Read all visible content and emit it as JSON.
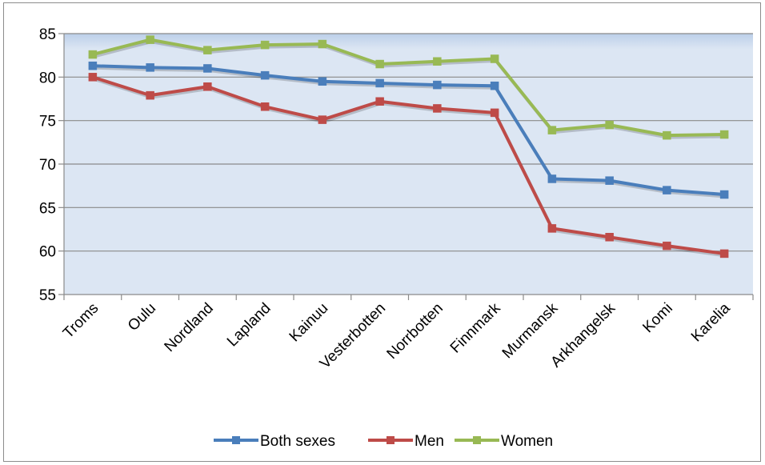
{
  "chart_data": {
    "type": "line",
    "title": "",
    "xlabel": "",
    "ylabel": "",
    "categories": [
      "Troms",
      "Oulu",
      "Nordland",
      "Lapland",
      "Kainuu",
      "Vesterbotten",
      "Norrbotten",
      "Finnmark",
      "Murmansk",
      "Arkhangelsk",
      "Komi",
      "Karelia"
    ],
    "ylim": [
      55,
      85
    ],
    "yticks": [
      55,
      60,
      65,
      70,
      75,
      80,
      85
    ],
    "grid": true,
    "legend_position": "bottom",
    "series": [
      {
        "name": "Both sexes",
        "color": "#4a7ebb",
        "values": [
          81.3,
          81.1,
          81.0,
          80.2,
          79.5,
          79.3,
          79.1,
          79.0,
          68.3,
          68.1,
          67.0,
          66.5
        ]
      },
      {
        "name": "Men",
        "color": "#be4b48",
        "values": [
          80.0,
          77.9,
          78.9,
          76.6,
          75.1,
          77.2,
          76.4,
          75.9,
          62.6,
          61.6,
          60.6,
          59.7
        ]
      },
      {
        "name": "Women",
        "color": "#98b954",
        "values": [
          82.6,
          84.3,
          83.1,
          83.7,
          83.8,
          81.5,
          81.8,
          82.1,
          73.9,
          74.5,
          73.3,
          73.4
        ]
      }
    ]
  }
}
